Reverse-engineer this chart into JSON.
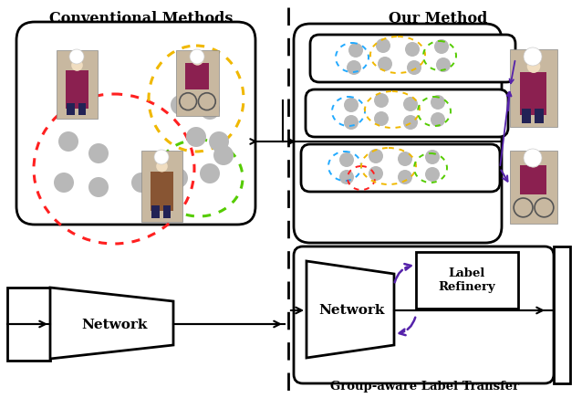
{
  "title_left": "Conventional Methods",
  "title_right": "Our Method",
  "network_label": "Network",
  "network_label_right": "Network",
  "label_refinery": "Label\nRefinery",
  "bottom_label": "Group-aware Label Transfer",
  "bg_color": "#ffffff",
  "gray_dot_color": "#b8b8b8",
  "red_color": "#ff2020",
  "yellow_color": "#f0b800",
  "green_color": "#55cc00",
  "blue_color": "#22aaff",
  "orange_color": "#ffaa00",
  "pink_color": "#ffaaaa",
  "purple_color": "#5522aa",
  "figsize": [
    6.38,
    4.36
  ],
  "dpi": 100
}
